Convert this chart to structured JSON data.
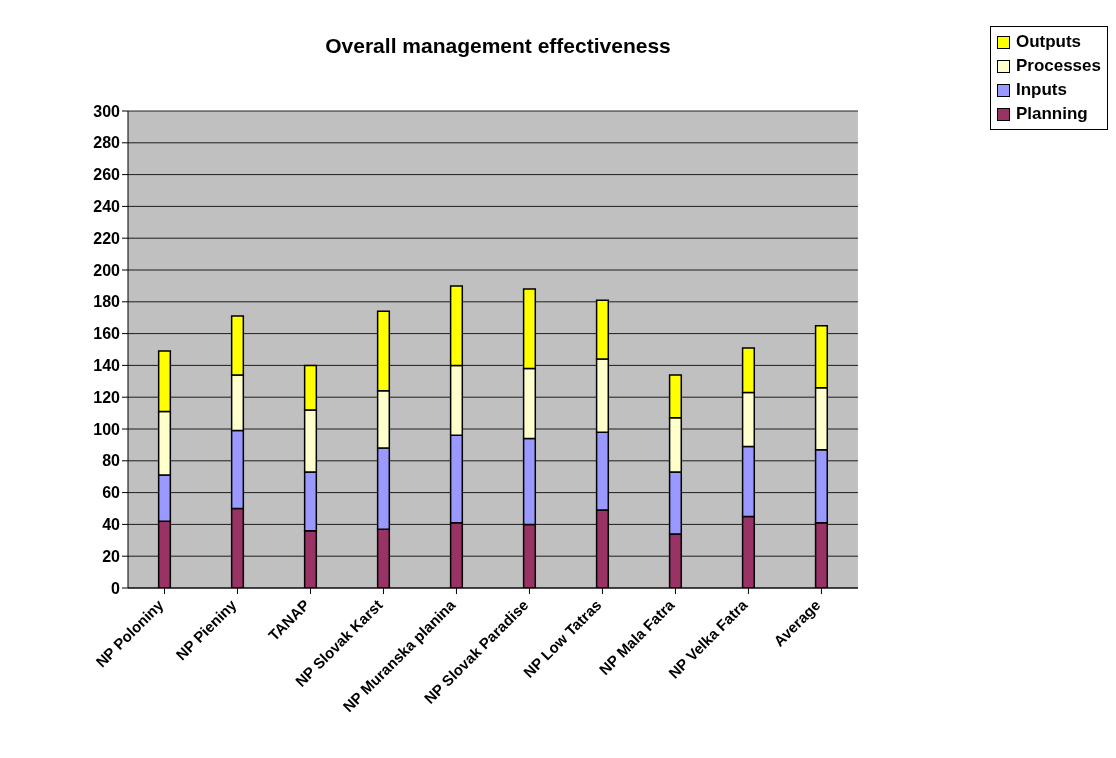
{
  "chart_data": {
    "type": "bar",
    "title": "Overall management effectiveness",
    "stacked": true,
    "categories": [
      "NP Poloniny",
      "NP Pieniny",
      "TANAP",
      "NP Slovak Karst",
      "NP Muranska planina",
      "NP Slovak Paradise",
      "NP Low Tatras",
      "NP Mala Fatra",
      "NP Velka Fatra",
      "Average"
    ],
    "series": [
      {
        "name": "Planning",
        "color": "#993366",
        "values": [
          42,
          50,
          36,
          37,
          41,
          40,
          49,
          34,
          45,
          41
        ]
      },
      {
        "name": "Inputs",
        "color": "#9999ff",
        "values": [
          29,
          49,
          37,
          51,
          55,
          54,
          49,
          39,
          44,
          46
        ]
      },
      {
        "name": "Processes",
        "color": "#ffffcc",
        "values": [
          40,
          35,
          39,
          36,
          44,
          44,
          46,
          34,
          34,
          39
        ]
      },
      {
        "name": "Outputs",
        "color": "#ffff00",
        "values": [
          38,
          37,
          28,
          50,
          50,
          50,
          37,
          27,
          28,
          39
        ]
      }
    ],
    "ylim": [
      0,
      300
    ],
    "yticks": [
      0,
      20,
      40,
      60,
      80,
      100,
      120,
      140,
      160,
      180,
      200,
      220,
      240,
      260,
      280,
      300
    ],
    "grid": "y",
    "legend": "top right"
  }
}
